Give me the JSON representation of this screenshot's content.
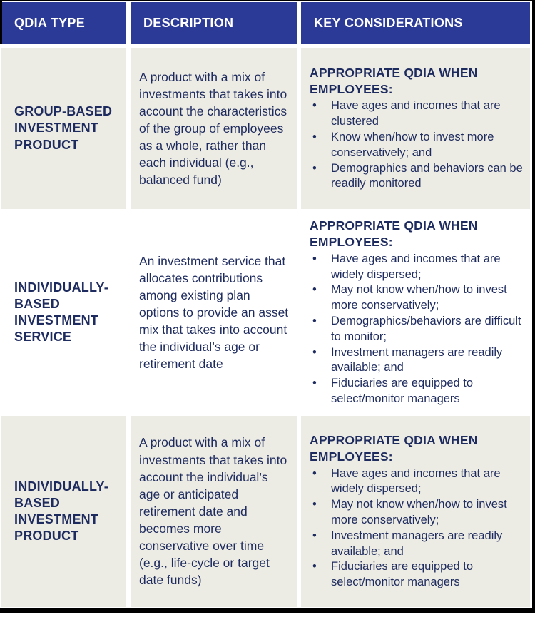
{
  "table": {
    "headers": [
      "QDIA TYPE",
      "DESCRIPTION",
      "KEY CONSIDERATIONS"
    ],
    "rows": [
      {
        "type": "GROUP-BASED INVESTMENT PRODUCT",
        "description": "A product with a mix of investments that takes into account the characteristics of the group of employees as a whole, rather than each individual (e.g., balanced fund)",
        "considerations_heading": "APPROPRIATE QDIA WHEN EMPLOYEES:",
        "considerations": [
          "Have ages and incomes that are clustered",
          "Know when/how to invest more conservatively; and",
          "Demographics and behaviors can be readily monitored"
        ]
      },
      {
        "type": "INDIVIDUALLY-BASED INVESTMENT SERVICE",
        "description": "An investment service that allocates contributions among existing plan options to provide an asset mix that takes into account the individual’s age or retirement date",
        "considerations_heading": "APPROPRIATE QDIA WHEN EMPLOYEES:",
        "considerations": [
          "Have ages and incomes that are widely dispersed;",
          "May not know when/how to invest more conservatively;",
          "Demographics/behaviors are difficult to monitor;",
          "Investment managers are readily available; and",
          "Fiduciaries are equipped to select/monitor managers"
        ]
      },
      {
        "type": "INDIVIDUALLY-BASED INVESTMENT PRODUCT",
        "description": "A product with a mix of investments that takes into account the individual’s age or anticipated retirement date and becomes more conservative over time (e.g., life-cycle or target date funds)",
        "considerations_heading": "APPROPRIATE QDIA WHEN EMPLOYEES:",
        "considerations": [
          "Have ages and incomes that are widely dispersed;",
          "May not know when/how to invest more conservatively;",
          "Investment managers are readily available; and",
          "Fiduciaries are equipped to select/monitor managers"
        ]
      }
    ]
  },
  "colors": {
    "header_bg": "#2C3A97",
    "text_navy": "#1E2B5E",
    "row_alt_bg": "#EDECE4",
    "row_bg": "#FFFFFF",
    "border": "#000000"
  }
}
